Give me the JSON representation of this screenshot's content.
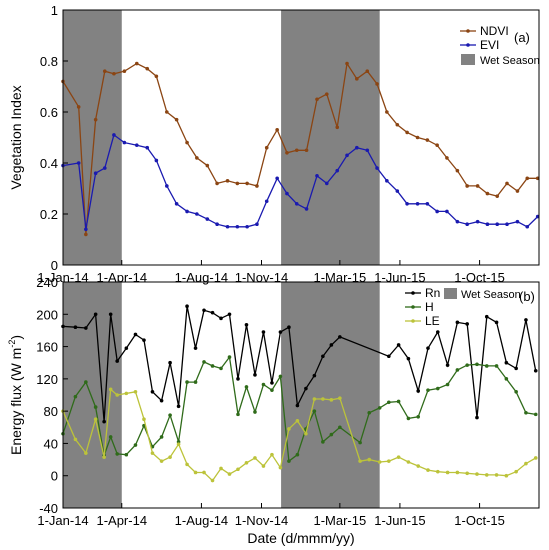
{
  "chart_data": [
    {
      "panel": "a",
      "panel_label": "(a)",
      "type": "line",
      "xlabel": "",
      "ylabel": "Vegetation Index",
      "ylim": [
        0,
        1
      ],
      "yticks": [
        "0",
        "0.2",
        "0.4",
        "0.6",
        "0.8",
        "1"
      ],
      "xticks": [
        "1-Jan-14",
        "1-Apr-14",
        "1-Aug-14",
        "1-Nov-14",
        "1-Mar-15",
        "1-Jun-15",
        "1-Oct-15"
      ],
      "xtick_dates": [
        "2014-01-01",
        "2014-04-01",
        "2014-08-01",
        "2014-11-01",
        "2015-03-01",
        "2015-06-01",
        "2015-10-01"
      ],
      "xlim": [
        "2014-01-01",
        "2015-12-31"
      ],
      "grid": false,
      "legend_position": "top-right",
      "wet_season_label": "Wet Season",
      "wet_season_periods": [
        [
          "2014-01-01",
          "2014-04-01"
        ],
        [
          "2014-12-01",
          "2015-05-01"
        ]
      ],
      "series": [
        {
          "name": "NDVI",
          "color": "#8b4513",
          "x": [
            "2014-01-01",
            "2014-01-25",
            "2014-02-05",
            "2014-02-20",
            "2014-03-06",
            "2014-03-20",
            "2014-04-05",
            "2014-04-24",
            "2014-05-10",
            "2014-05-24",
            "2014-06-09",
            "2014-06-24",
            "2014-07-10",
            "2014-07-25",
            "2014-08-10",
            "2014-08-25",
            "2014-09-10",
            "2014-09-25",
            "2014-10-10",
            "2014-10-25",
            "2014-11-09",
            "2014-11-25",
            "2014-12-10",
            "2014-12-25",
            "2015-01-09",
            "2015-01-25",
            "2015-02-09",
            "2015-02-25",
            "2015-03-12",
            "2015-03-27",
            "2015-04-12",
            "2015-04-27",
            "2015-05-12",
            "2015-05-28",
            "2015-06-12",
            "2015-06-28",
            "2015-07-13",
            "2015-07-28",
            "2015-08-12",
            "2015-08-28",
            "2015-09-12",
            "2015-09-28",
            "2015-10-13",
            "2015-10-28",
            "2015-11-12",
            "2015-11-28",
            "2015-12-13",
            "2015-12-29"
          ],
          "values": [
            0.72,
            0.62,
            0.12,
            0.57,
            0.76,
            0.75,
            0.76,
            0.79,
            0.77,
            0.74,
            0.6,
            0.57,
            0.48,
            0.42,
            0.39,
            0.32,
            0.33,
            0.32,
            0.32,
            0.31,
            0.46,
            0.53,
            0.44,
            0.45,
            0.45,
            0.65,
            0.67,
            0.54,
            0.79,
            0.73,
            0.76,
            0.71,
            0.6,
            0.55,
            0.52,
            0.5,
            0.49,
            0.47,
            0.42,
            0.37,
            0.31,
            0.31,
            0.28,
            0.27,
            0.32,
            0.29,
            0.34,
            0.34
          ]
        },
        {
          "name": "EVI",
          "color": "#1a1ab0",
          "x": [
            "2014-01-01",
            "2014-01-25",
            "2014-02-05",
            "2014-02-20",
            "2014-03-06",
            "2014-03-20",
            "2014-04-05",
            "2014-04-24",
            "2014-05-10",
            "2014-05-24",
            "2014-06-09",
            "2014-06-24",
            "2014-07-10",
            "2014-07-25",
            "2014-08-10",
            "2014-08-25",
            "2014-09-10",
            "2014-09-25",
            "2014-10-10",
            "2014-10-25",
            "2014-11-09",
            "2014-11-25",
            "2014-12-10",
            "2014-12-25",
            "2015-01-09",
            "2015-01-25",
            "2015-02-09",
            "2015-02-25",
            "2015-03-12",
            "2015-03-27",
            "2015-04-12",
            "2015-04-27",
            "2015-05-12",
            "2015-05-28",
            "2015-06-12",
            "2015-06-28",
            "2015-07-13",
            "2015-07-28",
            "2015-08-12",
            "2015-08-28",
            "2015-09-12",
            "2015-09-28",
            "2015-10-13",
            "2015-10-28",
            "2015-11-12",
            "2015-11-28",
            "2015-12-13",
            "2015-12-29"
          ],
          "values": [
            0.39,
            0.4,
            0.14,
            0.36,
            0.38,
            0.51,
            0.48,
            0.47,
            0.46,
            0.41,
            0.31,
            0.24,
            0.21,
            0.2,
            0.18,
            0.16,
            0.15,
            0.15,
            0.15,
            0.16,
            0.25,
            0.34,
            0.28,
            0.24,
            0.22,
            0.35,
            0.32,
            0.37,
            0.43,
            0.46,
            0.45,
            0.38,
            0.33,
            0.29,
            0.24,
            0.24,
            0.24,
            0.21,
            0.21,
            0.17,
            0.16,
            0.17,
            0.16,
            0.16,
            0.16,
            0.17,
            0.15,
            0.19
          ]
        }
      ]
    },
    {
      "panel": "b",
      "panel_label": "(b)",
      "type": "line",
      "xlabel": "Date (d/mmm/yy)",
      "ylabel": "Energy flux (W m",
      "ylabel_sup": "-2",
      "ylabel_close": ")",
      "ylim": [
        -40,
        240
      ],
      "yticks": [
        "-40",
        "0",
        "40",
        "80",
        "120",
        "160",
        "200",
        "240"
      ],
      "xticks": [
        "1-Jan-14",
        "1-Apr-14",
        "1-Aug-14",
        "1-Nov-14",
        "1-Mar-15",
        "1-Jun-15",
        "1-Oct-15"
      ],
      "xtick_dates": [
        "2014-01-01",
        "2014-04-01",
        "2014-08-01",
        "2014-11-01",
        "2015-03-01",
        "2015-06-01",
        "2015-10-01"
      ],
      "xlim": [
        "2014-01-01",
        "2015-12-31"
      ],
      "grid": false,
      "legend_position": "top-right",
      "wet_season_label": "Wet Season",
      "wet_season_periods": [
        [
          "2014-01-01",
          "2014-04-01"
        ],
        [
          "2014-12-01",
          "2015-05-01"
        ]
      ],
      "series": [
        {
          "name": "Rn",
          "color": "#000000",
          "x": [
            "2014-01-01",
            "2014-01-20",
            "2014-02-05",
            "2014-02-20",
            "2014-03-05",
            "2014-03-15",
            "2014-03-25",
            "2014-04-08",
            "2014-04-22",
            "2014-05-05",
            "2014-05-18",
            "2014-06-01",
            "2014-06-14",
            "2014-06-27",
            "2014-07-10",
            "2014-07-23",
            "2014-08-05",
            "2014-08-18",
            "2014-08-31",
            "2014-09-13",
            "2014-09-26",
            "2014-10-09",
            "2014-10-22",
            "2014-11-04",
            "2014-11-17",
            "2014-11-30",
            "2014-12-13",
            "2014-12-26",
            "2015-01-08",
            "2015-01-21",
            "2015-02-03",
            "2015-02-16",
            "2015-03-01",
            "2015-05-15",
            "2015-05-30",
            "2015-06-14",
            "2015-06-29",
            "2015-07-14",
            "2015-07-29",
            "2015-08-13",
            "2015-08-28",
            "2015-09-12",
            "2015-09-27",
            "2015-10-12",
            "2015-10-27",
            "2015-11-11",
            "2015-11-26",
            "2015-12-11",
            "2015-12-26"
          ],
          "values": [
            185,
            184,
            183,
            200,
            67,
            200,
            142,
            158,
            175,
            168,
            104,
            93,
            140,
            86,
            210,
            158,
            205,
            202,
            195,
            200,
            120,
            187,
            125,
            178,
            115,
            178,
            184,
            87,
            108,
            124,
            148,
            162,
            172,
            148,
            162,
            145,
            105,
            158,
            178,
            137,
            190,
            188,
            72,
            197,
            190,
            140,
            133,
            193,
            130
          ]
        },
        {
          "name": "H",
          "color": "#2f6b1a",
          "x": [
            "2014-01-01",
            "2014-01-20",
            "2014-02-05",
            "2014-02-20",
            "2014-03-05",
            "2014-03-15",
            "2014-03-25",
            "2014-04-08",
            "2014-04-22",
            "2014-05-05",
            "2014-05-18",
            "2014-06-01",
            "2014-06-14",
            "2014-06-27",
            "2014-07-10",
            "2014-07-23",
            "2014-08-05",
            "2014-08-18",
            "2014-08-31",
            "2014-09-13",
            "2014-09-26",
            "2014-10-09",
            "2014-10-22",
            "2014-11-04",
            "2014-11-17",
            "2014-11-30",
            "2014-12-13",
            "2014-12-26",
            "2015-01-08",
            "2015-01-21",
            "2015-02-03",
            "2015-02-16",
            "2015-03-01",
            "2015-04-01",
            "2015-04-15",
            "2015-05-01",
            "2015-05-15",
            "2015-05-30",
            "2015-06-14",
            "2015-06-29",
            "2015-07-14",
            "2015-07-29",
            "2015-08-13",
            "2015-08-28",
            "2015-09-12",
            "2015-09-27",
            "2015-10-12",
            "2015-10-27",
            "2015-11-11",
            "2015-11-26",
            "2015-12-11",
            "2015-12-26"
          ],
          "values": [
            52,
            98,
            116,
            85,
            25,
            48,
            27,
            26,
            38,
            62,
            36,
            48,
            75,
            42,
            116,
            116,
            141,
            136,
            133,
            147,
            76,
            110,
            79,
            113,
            106,
            123,
            18,
            26,
            58,
            80,
            42,
            51,
            60,
            41,
            78,
            84,
            91,
            92,
            71,
            73,
            106,
            108,
            113,
            131,
            137,
            138,
            136,
            136,
            120,
            104,
            78,
            76
          ]
        },
        {
          "name": "LE",
          "color": "#bcc33a",
          "x": [
            "2014-01-01",
            "2014-01-20",
            "2014-02-05",
            "2014-02-20",
            "2014-03-05",
            "2014-03-15",
            "2014-03-25",
            "2014-04-08",
            "2014-04-22",
            "2014-05-05",
            "2014-05-18",
            "2014-06-01",
            "2014-06-14",
            "2014-06-27",
            "2014-07-10",
            "2014-07-23",
            "2014-08-05",
            "2014-08-18",
            "2014-08-31",
            "2014-09-13",
            "2014-09-26",
            "2014-10-09",
            "2014-10-22",
            "2014-11-04",
            "2014-11-17",
            "2014-11-30",
            "2014-12-13",
            "2014-12-26",
            "2015-01-08",
            "2015-01-21",
            "2015-02-03",
            "2015-02-16",
            "2015-03-01",
            "2015-04-01",
            "2015-04-15",
            "2015-05-01",
            "2015-05-15",
            "2015-05-30",
            "2015-06-14",
            "2015-06-29",
            "2015-07-14",
            "2015-07-29",
            "2015-08-13",
            "2015-08-28",
            "2015-09-12",
            "2015-09-27",
            "2015-10-12",
            "2015-10-27",
            "2015-11-11",
            "2015-11-26",
            "2015-12-11",
            "2015-12-26"
          ],
          "values": [
            80,
            45,
            28,
            70,
            23,
            107,
            100,
            102,
            104,
            70,
            28,
            18,
            23,
            39,
            14,
            4,
            4,
            -6,
            9,
            2,
            8,
            16,
            22,
            12,
            26,
            10,
            58,
            68,
            52,
            95,
            95,
            94,
            96,
            18,
            20,
            17,
            18,
            23,
            17,
            12,
            7,
            5,
            4,
            4,
            3,
            2,
            1,
            1,
            0,
            5,
            15,
            22
          ]
        }
      ]
    }
  ]
}
